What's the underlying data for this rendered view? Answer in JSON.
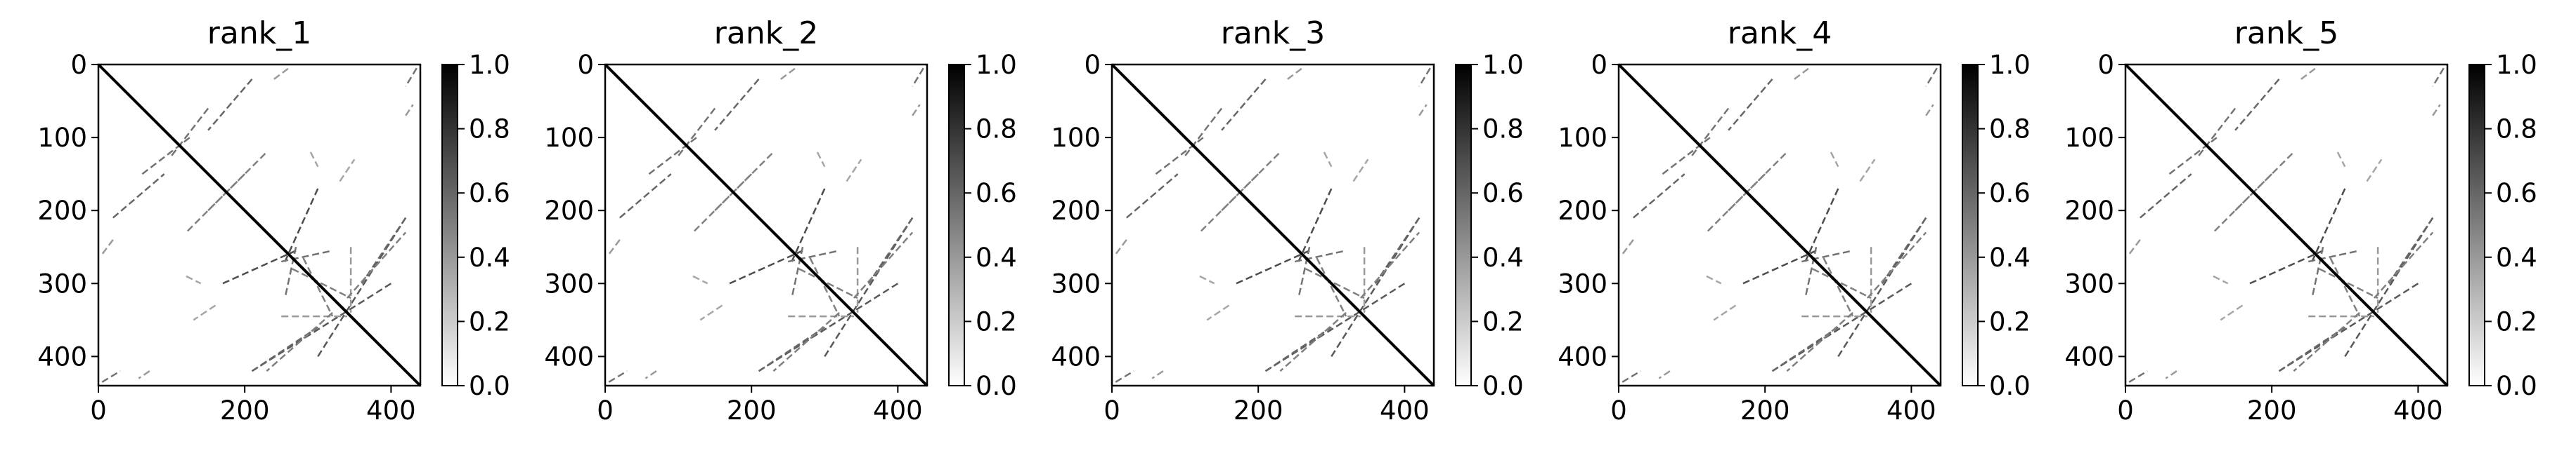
{
  "chart_data": [
    {
      "type": "heatmap",
      "title": "rank_1",
      "colormap": "Greys",
      "matrix_size": 440,
      "xlim": [
        0,
        440
      ],
      "ylim": [
        440,
        0
      ],
      "x_ticks": [
        "0",
        "200",
        "400"
      ],
      "y_ticks": [
        "0",
        "100",
        "200",
        "300",
        "400"
      ],
      "colorbar": {
        "range": [
          0.0,
          1.0
        ],
        "ticks": [
          "0.0",
          "0.2",
          "0.4",
          "0.6",
          "0.8",
          "1.0"
        ]
      },
      "diagonal": {
        "from": 0,
        "to": 440,
        "value": 1.0
      },
      "contact_segments": [
        {
          "x0": 40,
          "y0": 40,
          "x1": 110,
          "y1": 110,
          "value": 0.95
        },
        {
          "x0": 100,
          "y0": 100,
          "x1": 130,
          "y1": 130,
          "value": 0.9
        },
        {
          "x0": 20,
          "y0": 210,
          "x1": 90,
          "y1": 150,
          "value": 0.6
        },
        {
          "x0": 60,
          "y0": 150,
          "x1": 125,
          "y1": 100,
          "value": 0.55
        },
        {
          "x0": 150,
          "y0": 200,
          "x1": 230,
          "y1": 120,
          "value": 0.5
        },
        {
          "x0": 240,
          "y0": 20,
          "x1": 260,
          "y1": 5,
          "value": 0.4
        },
        {
          "x0": 170,
          "y0": 300,
          "x1": 270,
          "y1": 255,
          "value": 0.7
        },
        {
          "x0": 250,
          "y0": 270,
          "x1": 320,
          "y1": 255,
          "value": 0.55
        },
        {
          "x0": 280,
          "y0": 265,
          "x1": 320,
          "y1": 345,
          "value": 0.5
        },
        {
          "x0": 300,
          "y0": 400,
          "x1": 420,
          "y1": 210,
          "value": 0.65
        },
        {
          "x0": 210,
          "y0": 420,
          "x1": 300,
          "y1": 360,
          "value": 0.6
        },
        {
          "x0": 250,
          "y0": 345,
          "x1": 340,
          "y1": 345,
          "value": 0.4
        },
        {
          "x0": 340,
          "y0": 320,
          "x1": 420,
          "y1": 230,
          "value": 0.5
        },
        {
          "x0": 5,
          "y0": 435,
          "x1": 30,
          "y1": 420,
          "value": 0.55
        },
        {
          "x0": 420,
          "y0": 70,
          "x1": 430,
          "y1": 55,
          "value": 0.4
        },
        {
          "x0": 120,
          "y0": 290,
          "x1": 140,
          "y1": 300,
          "value": 0.35
        },
        {
          "x0": 330,
          "y0": 160,
          "x1": 350,
          "y1": 130,
          "value": 0.35
        }
      ]
    },
    {
      "type": "heatmap",
      "title": "rank_2",
      "colormap": "Greys",
      "matrix_size": 440,
      "xlim": [
        0,
        440
      ],
      "ylim": [
        440,
        0
      ],
      "x_ticks": [
        "0",
        "200",
        "400"
      ],
      "y_ticks": [
        "0",
        "100",
        "200",
        "300",
        "400"
      ],
      "colorbar": {
        "range": [
          0.0,
          1.0
        ],
        "ticks": [
          "0.0",
          "0.2",
          "0.4",
          "0.6",
          "0.8",
          "1.0"
        ]
      },
      "diagonal": {
        "from": 0,
        "to": 440,
        "value": 1.0
      },
      "contact_segments": [
        {
          "x0": 40,
          "y0": 40,
          "x1": 110,
          "y1": 110,
          "value": 0.95
        },
        {
          "x0": 100,
          "y0": 100,
          "x1": 130,
          "y1": 130,
          "value": 0.9
        },
        {
          "x0": 20,
          "y0": 210,
          "x1": 90,
          "y1": 150,
          "value": 0.6
        },
        {
          "x0": 60,
          "y0": 150,
          "x1": 125,
          "y1": 100,
          "value": 0.55
        },
        {
          "x0": 150,
          "y0": 200,
          "x1": 230,
          "y1": 120,
          "value": 0.5
        },
        {
          "x0": 240,
          "y0": 20,
          "x1": 260,
          "y1": 5,
          "value": 0.4
        },
        {
          "x0": 170,
          "y0": 300,
          "x1": 270,
          "y1": 255,
          "value": 0.7
        },
        {
          "x0": 250,
          "y0": 270,
          "x1": 320,
          "y1": 255,
          "value": 0.55
        },
        {
          "x0": 280,
          "y0": 265,
          "x1": 320,
          "y1": 345,
          "value": 0.5
        },
        {
          "x0": 300,
          "y0": 400,
          "x1": 420,
          "y1": 210,
          "value": 0.65
        },
        {
          "x0": 210,
          "y0": 420,
          "x1": 300,
          "y1": 360,
          "value": 0.6
        },
        {
          "x0": 250,
          "y0": 345,
          "x1": 340,
          "y1": 345,
          "value": 0.4
        },
        {
          "x0": 340,
          "y0": 320,
          "x1": 420,
          "y1": 230,
          "value": 0.5
        },
        {
          "x0": 5,
          "y0": 435,
          "x1": 30,
          "y1": 420,
          "value": 0.55
        },
        {
          "x0": 420,
          "y0": 70,
          "x1": 430,
          "y1": 55,
          "value": 0.4
        },
        {
          "x0": 120,
          "y0": 290,
          "x1": 140,
          "y1": 300,
          "value": 0.35
        },
        {
          "x0": 330,
          "y0": 160,
          "x1": 350,
          "y1": 130,
          "value": 0.35
        }
      ]
    },
    {
      "type": "heatmap",
      "title": "rank_3",
      "colormap": "Greys",
      "matrix_size": 440,
      "xlim": [
        0,
        440
      ],
      "ylim": [
        440,
        0
      ],
      "x_ticks": [
        "0",
        "200",
        "400"
      ],
      "y_ticks": [
        "0",
        "100",
        "200",
        "300",
        "400"
      ],
      "colorbar": {
        "range": [
          0.0,
          1.0
        ],
        "ticks": [
          "0.0",
          "0.2",
          "0.4",
          "0.6",
          "0.8",
          "1.0"
        ]
      },
      "diagonal": {
        "from": 0,
        "to": 440,
        "value": 1.0
      },
      "contact_segments": [
        {
          "x0": 40,
          "y0": 40,
          "x1": 110,
          "y1": 110,
          "value": 0.95
        },
        {
          "x0": 100,
          "y0": 100,
          "x1": 130,
          "y1": 130,
          "value": 0.9
        },
        {
          "x0": 20,
          "y0": 210,
          "x1": 90,
          "y1": 150,
          "value": 0.6
        },
        {
          "x0": 60,
          "y0": 150,
          "x1": 125,
          "y1": 100,
          "value": 0.55
        },
        {
          "x0": 150,
          "y0": 200,
          "x1": 230,
          "y1": 120,
          "value": 0.5
        },
        {
          "x0": 240,
          "y0": 20,
          "x1": 260,
          "y1": 5,
          "value": 0.4
        },
        {
          "x0": 170,
          "y0": 300,
          "x1": 270,
          "y1": 255,
          "value": 0.7
        },
        {
          "x0": 250,
          "y0": 270,
          "x1": 320,
          "y1": 255,
          "value": 0.55
        },
        {
          "x0": 280,
          "y0": 265,
          "x1": 320,
          "y1": 345,
          "value": 0.5
        },
        {
          "x0": 300,
          "y0": 400,
          "x1": 420,
          "y1": 210,
          "value": 0.65
        },
        {
          "x0": 210,
          "y0": 420,
          "x1": 300,
          "y1": 360,
          "value": 0.6
        },
        {
          "x0": 250,
          "y0": 345,
          "x1": 340,
          "y1": 345,
          "value": 0.4
        },
        {
          "x0": 340,
          "y0": 320,
          "x1": 420,
          "y1": 230,
          "value": 0.5
        },
        {
          "x0": 5,
          "y0": 435,
          "x1": 30,
          "y1": 420,
          "value": 0.55
        },
        {
          "x0": 420,
          "y0": 70,
          "x1": 430,
          "y1": 55,
          "value": 0.4
        },
        {
          "x0": 120,
          "y0": 290,
          "x1": 140,
          "y1": 300,
          "value": 0.35
        },
        {
          "x0": 330,
          "y0": 160,
          "x1": 350,
          "y1": 130,
          "value": 0.35
        }
      ]
    },
    {
      "type": "heatmap",
      "title": "rank_4",
      "colormap": "Greys",
      "matrix_size": 440,
      "xlim": [
        0,
        440
      ],
      "ylim": [
        440,
        0
      ],
      "x_ticks": [
        "0",
        "200",
        "400"
      ],
      "y_ticks": [
        "0",
        "100",
        "200",
        "300",
        "400"
      ],
      "colorbar": {
        "range": [
          0.0,
          1.0
        ],
        "ticks": [
          "0.0",
          "0.2",
          "0.4",
          "0.6",
          "0.8",
          "1.0"
        ]
      },
      "diagonal": {
        "from": 0,
        "to": 440,
        "value": 1.0
      },
      "contact_segments": [
        {
          "x0": 40,
          "y0": 40,
          "x1": 110,
          "y1": 110,
          "value": 0.95
        },
        {
          "x0": 100,
          "y0": 100,
          "x1": 130,
          "y1": 130,
          "value": 0.9
        },
        {
          "x0": 20,
          "y0": 210,
          "x1": 90,
          "y1": 150,
          "value": 0.6
        },
        {
          "x0": 60,
          "y0": 150,
          "x1": 125,
          "y1": 100,
          "value": 0.55
        },
        {
          "x0": 150,
          "y0": 200,
          "x1": 230,
          "y1": 120,
          "value": 0.5
        },
        {
          "x0": 240,
          "y0": 20,
          "x1": 260,
          "y1": 5,
          "value": 0.4
        },
        {
          "x0": 170,
          "y0": 300,
          "x1": 270,
          "y1": 255,
          "value": 0.7
        },
        {
          "x0": 250,
          "y0": 270,
          "x1": 320,
          "y1": 255,
          "value": 0.55
        },
        {
          "x0": 280,
          "y0": 265,
          "x1": 320,
          "y1": 345,
          "value": 0.5
        },
        {
          "x0": 300,
          "y0": 400,
          "x1": 420,
          "y1": 210,
          "value": 0.65
        },
        {
          "x0": 210,
          "y0": 420,
          "x1": 300,
          "y1": 360,
          "value": 0.6
        },
        {
          "x0": 250,
          "y0": 345,
          "x1": 340,
          "y1": 345,
          "value": 0.4
        },
        {
          "x0": 340,
          "y0": 320,
          "x1": 420,
          "y1": 230,
          "value": 0.5
        },
        {
          "x0": 5,
          "y0": 435,
          "x1": 30,
          "y1": 420,
          "value": 0.55
        },
        {
          "x0": 420,
          "y0": 70,
          "x1": 430,
          "y1": 55,
          "value": 0.4
        },
        {
          "x0": 120,
          "y0": 290,
          "x1": 140,
          "y1": 300,
          "value": 0.35
        },
        {
          "x0": 330,
          "y0": 160,
          "x1": 350,
          "y1": 130,
          "value": 0.35
        }
      ]
    },
    {
      "type": "heatmap",
      "title": "rank_5",
      "colormap": "Greys",
      "matrix_size": 440,
      "xlim": [
        0,
        440
      ],
      "ylim": [
        440,
        0
      ],
      "x_ticks": [
        "0",
        "200",
        "400"
      ],
      "y_ticks": [
        "0",
        "100",
        "200",
        "300",
        "400"
      ],
      "colorbar": {
        "range": [
          0.0,
          1.0
        ],
        "ticks": [
          "0.0",
          "0.2",
          "0.4",
          "0.6",
          "0.8",
          "1.0"
        ]
      },
      "diagonal": {
        "from": 0,
        "to": 440,
        "value": 1.0
      },
      "contact_segments": [
        {
          "x0": 40,
          "y0": 40,
          "x1": 110,
          "y1": 110,
          "value": 0.95
        },
        {
          "x0": 100,
          "y0": 100,
          "x1": 130,
          "y1": 130,
          "value": 0.9
        },
        {
          "x0": 20,
          "y0": 210,
          "x1": 90,
          "y1": 150,
          "value": 0.6
        },
        {
          "x0": 60,
          "y0": 150,
          "x1": 125,
          "y1": 100,
          "value": 0.55
        },
        {
          "x0": 150,
          "y0": 200,
          "x1": 230,
          "y1": 120,
          "value": 0.5
        },
        {
          "x0": 240,
          "y0": 20,
          "x1": 260,
          "y1": 5,
          "value": 0.4
        },
        {
          "x0": 170,
          "y0": 300,
          "x1": 270,
          "y1": 255,
          "value": 0.7
        },
        {
          "x0": 250,
          "y0": 270,
          "x1": 320,
          "y1": 255,
          "value": 0.55
        },
        {
          "x0": 280,
          "y0": 265,
          "x1": 320,
          "y1": 345,
          "value": 0.5
        },
        {
          "x0": 300,
          "y0": 400,
          "x1": 420,
          "y1": 210,
          "value": 0.65
        },
        {
          "x0": 210,
          "y0": 420,
          "x1": 300,
          "y1": 360,
          "value": 0.6
        },
        {
          "x0": 250,
          "y0": 345,
          "x1": 340,
          "y1": 345,
          "value": 0.4
        },
        {
          "x0": 340,
          "y0": 320,
          "x1": 420,
          "y1": 230,
          "value": 0.5
        },
        {
          "x0": 5,
          "y0": 435,
          "x1": 30,
          "y1": 420,
          "value": 0.55
        },
        {
          "x0": 420,
          "y0": 70,
          "x1": 430,
          "y1": 55,
          "value": 0.4
        },
        {
          "x0": 120,
          "y0": 290,
          "x1": 140,
          "y1": 300,
          "value": 0.35
        },
        {
          "x0": 330,
          "y0": 160,
          "x1": 350,
          "y1": 130,
          "value": 0.35
        }
      ]
    }
  ]
}
